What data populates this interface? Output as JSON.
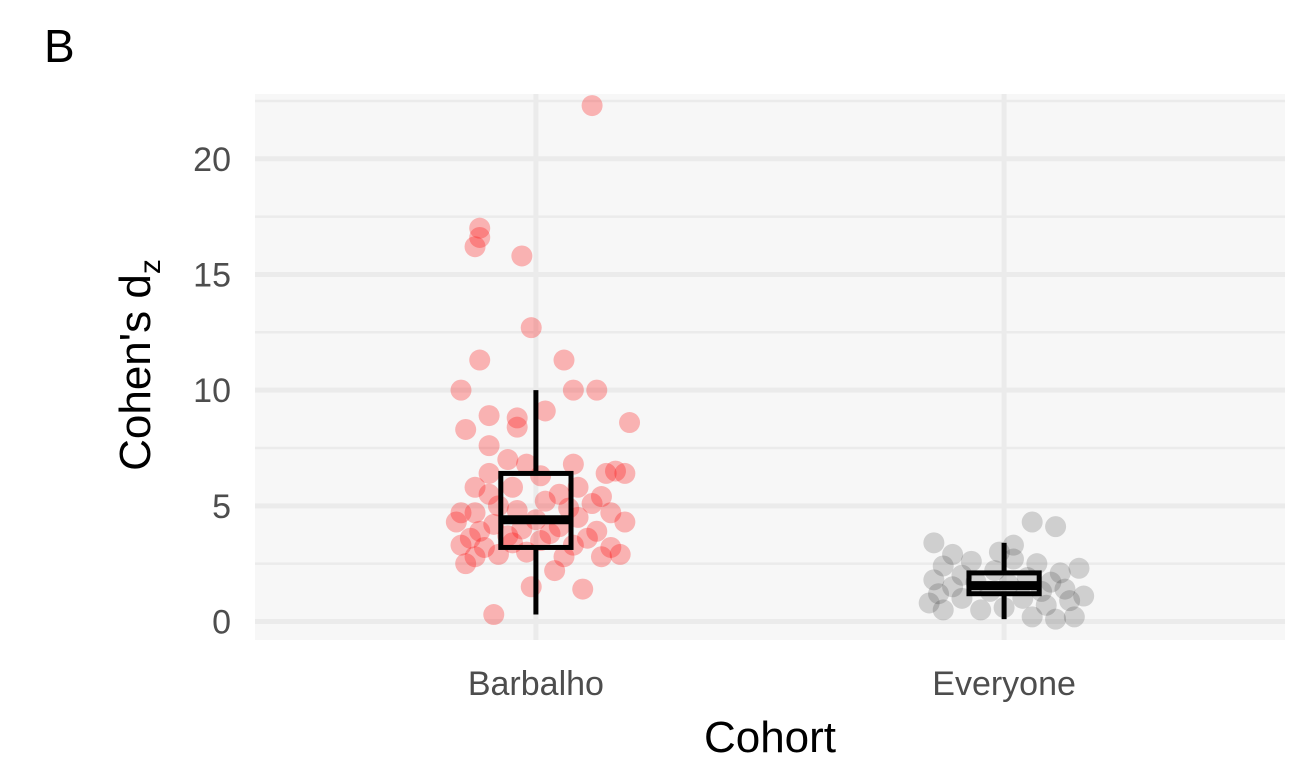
{
  "panel_label": "B",
  "chart_data": {
    "type": "scatter",
    "subtype": "jittered points with boxplot",
    "xlabel": "Cohort",
    "ylabel": "Cohen's d",
    "ylabel_subscript": "z",
    "categories": [
      "Barbalho",
      "Everyone"
    ],
    "ylim": [
      -0.8,
      22.8
    ],
    "yticks": [
      0,
      5,
      10,
      15,
      20
    ],
    "grid": true,
    "background": "#f7f7f7",
    "grid_color": "#ebebeb",
    "legend": "none",
    "series": [
      {
        "category": "Barbalho",
        "color": "#ff0000",
        "opacity": 0.28,
        "box": {
          "min": 0.3,
          "q1": 3.2,
          "median": 4.4,
          "q3": 6.4,
          "max": 10.0
        },
        "points": [
          [
            -0.09,
            0.3
          ],
          [
            0.1,
            1.4
          ],
          [
            -0.01,
            1.5
          ],
          [
            0.04,
            2.2
          ],
          [
            -0.15,
            2.5
          ],
          [
            -0.13,
            2.8
          ],
          [
            -0.08,
            2.9
          ],
          [
            -0.02,
            3.0
          ],
          [
            0.06,
            2.8
          ],
          [
            0.14,
            2.8
          ],
          [
            0.18,
            2.9
          ],
          [
            -0.16,
            3.3
          ],
          [
            -0.11,
            3.2
          ],
          [
            -0.05,
            3.4
          ],
          [
            0.01,
            3.5
          ],
          [
            0.08,
            3.3
          ],
          [
            0.16,
            3.2
          ],
          [
            -0.14,
            3.6
          ],
          [
            -0.06,
            3.7
          ],
          [
            0.03,
            3.8
          ],
          [
            0.11,
            3.6
          ],
          [
            -0.12,
            3.9
          ],
          [
            -0.03,
            4.0
          ],
          [
            0.05,
            4.1
          ],
          [
            0.13,
            3.9
          ],
          [
            -0.17,
            4.3
          ],
          [
            -0.09,
            4.2
          ],
          [
            0.0,
            4.4
          ],
          [
            0.09,
            4.5
          ],
          [
            0.19,
            4.3
          ],
          [
            -0.13,
            4.7
          ],
          [
            -0.04,
            4.8
          ],
          [
            0.07,
            4.9
          ],
          [
            0.16,
            4.7
          ],
          [
            -0.16,
            4.7
          ],
          [
            -0.08,
            5.0
          ],
          [
            0.02,
            5.2
          ],
          [
            0.12,
            5.1
          ],
          [
            -0.1,
            5.5
          ],
          [
            0.05,
            5.5
          ],
          [
            0.14,
            5.4
          ],
          [
            -0.05,
            5.8
          ],
          [
            0.09,
            5.8
          ],
          [
            -0.13,
            5.8
          ],
          [
            -0.1,
            6.4
          ],
          [
            0.01,
            6.3
          ],
          [
            0.15,
            6.4
          ],
          [
            0.17,
            6.5
          ],
          [
            0.19,
            6.4
          ],
          [
            -0.02,
            6.8
          ],
          [
            0.08,
            6.8
          ],
          [
            -0.06,
            7.0
          ],
          [
            -0.1,
            7.6
          ],
          [
            -0.15,
            8.3
          ],
          [
            -0.04,
            8.4
          ],
          [
            -0.04,
            8.8
          ],
          [
            -0.1,
            8.9
          ],
          [
            0.02,
            9.1
          ],
          [
            0.2,
            8.6
          ],
          [
            -0.16,
            10.0
          ],
          [
            0.08,
            10.0
          ],
          [
            0.13,
            10.0
          ],
          [
            -0.12,
            11.3
          ],
          [
            0.06,
            11.3
          ],
          [
            -0.01,
            12.7
          ],
          [
            -0.03,
            15.8
          ],
          [
            -0.13,
            16.2
          ],
          [
            -0.12,
            16.6
          ],
          [
            -0.12,
            17.0
          ],
          [
            0.12,
            22.3
          ]
        ]
      },
      {
        "category": "Everyone",
        "color": "#1a1a1a",
        "opacity": 0.18,
        "box": {
          "min": 0.1,
          "q1": 1.2,
          "median": 1.55,
          "q3": 2.1,
          "max": 3.4
        },
        "points": [
          [
            0.11,
            0.1
          ],
          [
            0.15,
            0.2
          ],
          [
            0.06,
            0.2
          ],
          [
            -0.13,
            0.5
          ],
          [
            -0.05,
            0.5
          ],
          [
            0.0,
            0.6
          ],
          [
            0.09,
            0.7
          ],
          [
            -0.16,
            0.8
          ],
          [
            0.14,
            0.9
          ],
          [
            -0.09,
            1.0
          ],
          [
            0.04,
            1.0
          ],
          [
            0.17,
            1.1
          ],
          [
            -0.14,
            1.2
          ],
          [
            -0.03,
            1.3
          ],
          [
            0.08,
            1.3
          ],
          [
            0.13,
            1.4
          ],
          [
            -0.11,
            1.5
          ],
          [
            0.01,
            1.6
          ],
          [
            -0.06,
            1.7
          ],
          [
            0.1,
            1.7
          ],
          [
            -0.15,
            1.8
          ],
          [
            0.05,
            1.9
          ],
          [
            -0.09,
            2.0
          ],
          [
            0.12,
            2.1
          ],
          [
            -0.02,
            2.2
          ],
          [
            0.16,
            2.3
          ],
          [
            -0.13,
            2.4
          ],
          [
            0.07,
            2.5
          ],
          [
            -0.07,
            2.6
          ],
          [
            0.02,
            2.7
          ],
          [
            -0.11,
            2.9
          ],
          [
            -0.01,
            3.0
          ],
          [
            -0.15,
            3.4
          ],
          [
            0.02,
            3.3
          ],
          [
            0.06,
            4.3
          ],
          [
            0.11,
            4.1
          ]
        ]
      }
    ]
  }
}
